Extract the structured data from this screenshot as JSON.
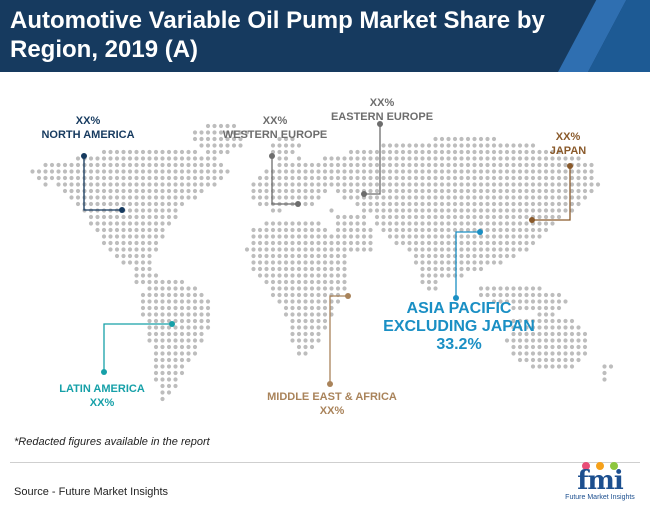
{
  "title": "Automotive Variable Oil Pump Market Share by Region, 2019 (A)",
  "colors": {
    "header_bg": "#163a5f",
    "north_america": "#163a5f",
    "europe": "#6d6d6d",
    "japan": "#8a5a2b",
    "latin_america": "#16a0a8",
    "mea": "#a9835a",
    "apac": "#1a8fc4",
    "map_dots": "#bdbdbd"
  },
  "regions": {
    "north_america": {
      "value": "XX%",
      "name": "NORTH AMERICA"
    },
    "western_europe": {
      "value": "XX%",
      "name": "WESTERN EUROPE"
    },
    "eastern_europe": {
      "value": "XX%",
      "name": "EASTERN EUROPE"
    },
    "japan": {
      "value": "XX%",
      "name": "JAPAN"
    },
    "apac": {
      "name_line1": "ASIA PACIFIC",
      "name_line2": "EXCLUDING JAPAN",
      "value": "33.2%"
    },
    "latin_america": {
      "name": "LATIN AMERICA",
      "value": "XX%"
    },
    "mea": {
      "name": "MIDDLE EAST & AFRICA",
      "value": "XX%"
    }
  },
  "note": "*Redacted figures available in the report",
  "source": "Source - Future Market Insights",
  "logo": {
    "mark": "fmi",
    "tagline": "Future Market Insights"
  }
}
